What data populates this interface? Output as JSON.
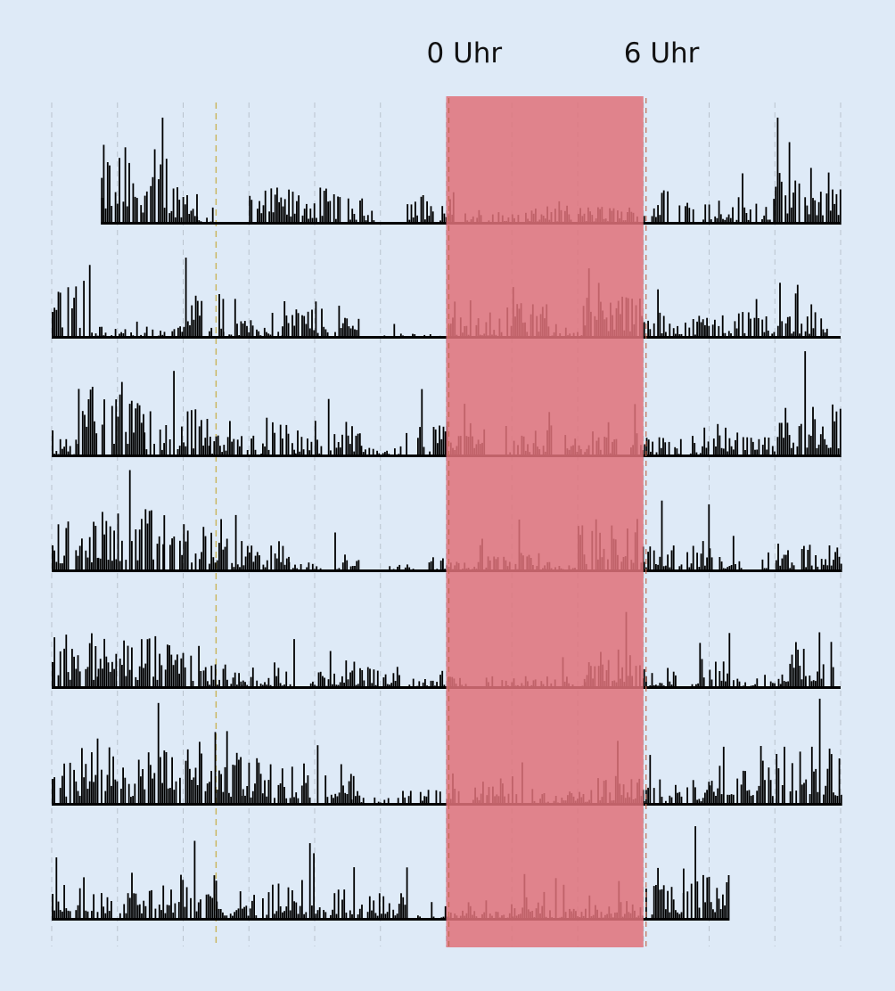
{
  "chart_data": {
    "type": "bar",
    "title": "",
    "xlabel": "",
    "ylabel": "",
    "x_hours": [
      -12,
      12
    ],
    "markers": [
      {
        "label": "0 Uhr",
        "hour": 0
      },
      {
        "label": "6 Uhr",
        "hour": 6
      }
    ],
    "highlight": {
      "from_hour": 0,
      "to_hour": 6,
      "color": "#e0727a"
    },
    "bar_color": "#000000",
    "grid": true,
    "rows": [
      {
        "day": 1,
        "start_hour": -10.5,
        "end_hour": 12,
        "segments": [
          [
            -10.5,
            -8.5,
            0.75
          ],
          [
            -8.5,
            -7.6,
            0.45
          ],
          [
            -7.6,
            -7.0,
            0.1
          ],
          [
            -6.0,
            -3.2,
            0.35
          ],
          [
            -3.0,
            -2.0,
            0.25
          ],
          [
            -1.2,
            -0.4,
            0.3
          ],
          [
            -0.2,
            0.2,
            0.25
          ],
          [
            0.2,
            2.2,
            0.12
          ],
          [
            2.4,
            3.8,
            0.15
          ],
          [
            4.0,
            5.8,
            0.18
          ],
          [
            6.0,
            7.6,
            0.35
          ],
          [
            7.8,
            10.0,
            0.28
          ],
          [
            10.0,
            12.0,
            0.55
          ]
        ]
      },
      {
        "day": 2,
        "start_hour": -12,
        "end_hour": 12,
        "segments": [
          [
            -12,
            -10.8,
            0.6
          ],
          [
            -10.8,
            -8.0,
            0.12
          ],
          [
            -8.0,
            -6.8,
            0.45
          ],
          [
            -6.8,
            -5.0,
            0.18
          ],
          [
            -5.0,
            -3.6,
            0.35
          ],
          [
            -3.4,
            -2.6,
            0.25
          ],
          [
            -2.2,
            -1.6,
            0.04
          ],
          [
            -1.4,
            0.0,
            0.05
          ],
          [
            0.0,
            1.6,
            0.2
          ],
          [
            1.6,
            3.2,
            0.35
          ],
          [
            3.2,
            4.2,
            0.12
          ],
          [
            4.2,
            6.0,
            0.45
          ],
          [
            6.0,
            8.4,
            0.25
          ],
          [
            8.4,
            11.6,
            0.3
          ]
        ]
      },
      {
        "day": 3,
        "start_hour": -12,
        "end_hour": 12,
        "segments": [
          [
            -12,
            -11.2,
            0.18
          ],
          [
            -11.2,
            -9.2,
            0.75
          ],
          [
            -9.2,
            -7.2,
            0.45
          ],
          [
            -7.2,
            -5.6,
            0.2
          ],
          [
            -5.6,
            -4.6,
            0.4
          ],
          [
            -4.6,
            -3.8,
            0.2
          ],
          [
            -3.6,
            -2.6,
            0.35
          ],
          [
            -2.6,
            -1.2,
            0.12
          ],
          [
            -1.0,
            0.0,
            0.3
          ],
          [
            0.0,
            1.2,
            0.35
          ],
          [
            1.8,
            3.2,
            0.3
          ],
          [
            3.6,
            5.2,
            0.25
          ],
          [
            5.6,
            6.4,
            0.3
          ],
          [
            6.4,
            8.0,
            0.2
          ],
          [
            8.0,
            10.0,
            0.35
          ],
          [
            10.0,
            12.0,
            0.55
          ]
        ]
      },
      {
        "day": 4,
        "start_hour": -12,
        "end_hour": 12,
        "segments": [
          [
            -12,
            -10.6,
            0.5
          ],
          [
            -10.6,
            -8.6,
            0.6
          ],
          [
            -8.6,
            -6.6,
            0.5
          ],
          [
            -6.6,
            -4.8,
            0.3
          ],
          [
            -4.8,
            -3.8,
            0.1
          ],
          [
            -3.4,
            -2.6,
            0.18
          ],
          [
            -1.8,
            -1.0,
            0.1
          ],
          [
            -0.6,
            0.0,
            0.15
          ],
          [
            0.0,
            2.2,
            0.15
          ],
          [
            2.2,
            3.0,
            0.25
          ],
          [
            3.0,
            4.0,
            0.1
          ],
          [
            4.0,
            6.0,
            0.5
          ],
          [
            6.0,
            8.0,
            0.3
          ],
          [
            8.0,
            9.0,
            0.22
          ],
          [
            9.6,
            10.6,
            0.25
          ],
          [
            10.8,
            12.0,
            0.3
          ]
        ]
      },
      {
        "day": 5,
        "start_hour": -12,
        "end_hour": 12,
        "segments": [
          [
            -12,
            -10.6,
            0.55
          ],
          [
            -10.6,
            -8.8,
            0.5
          ],
          [
            -8.8,
            -7.4,
            0.45
          ],
          [
            -7.4,
            -6.2,
            0.25
          ],
          [
            -6.2,
            -4.6,
            0.2
          ],
          [
            -4.2,
            -3.0,
            0.18
          ],
          [
            -3.0,
            -1.4,
            0.22
          ],
          [
            -1.2,
            -0.2,
            0.12
          ],
          [
            -0.2,
            0.6,
            0.25
          ],
          [
            1.2,
            4.2,
            0.12
          ],
          [
            4.2,
            6.0,
            0.4
          ],
          [
            6.0,
            7.0,
            0.2
          ],
          [
            7.4,
            8.6,
            0.28
          ],
          [
            8.6,
            10.2,
            0.1
          ],
          [
            10.2,
            11.8,
            0.45
          ]
        ]
      },
      {
        "day": 6,
        "start_hour": -12,
        "end_hour": 12,
        "segments": [
          [
            -12,
            -6.2,
            0.55
          ],
          [
            -6.2,
            -2.9,
            0.45
          ],
          [
            -2.9,
            -2.4,
            0.1
          ],
          [
            -2.2,
            -1.4,
            0.08
          ],
          [
            -1.4,
            -0.2,
            0.15
          ],
          [
            0.0,
            0.4,
            0.18
          ],
          [
            0.8,
            2.4,
            0.28
          ],
          [
            2.6,
            4.6,
            0.15
          ],
          [
            4.6,
            6.0,
            0.3
          ],
          [
            6.0,
            8.0,
            0.25
          ],
          [
            8.0,
            12.0,
            0.6
          ]
        ]
      },
      {
        "day": 7,
        "start_hour": -12,
        "end_hour": 8.6,
        "segments": [
          [
            -12,
            -10.2,
            0.42
          ],
          [
            -10.0,
            -7.0,
            0.45
          ],
          [
            -7.0,
            -5.8,
            0.3
          ],
          [
            -5.6,
            -3.6,
            0.35
          ],
          [
            -3.6,
            -1.2,
            0.3
          ],
          [
            -1.0,
            0.0,
            0.05
          ],
          [
            0.0,
            2.0,
            0.12
          ],
          [
            2.0,
            3.8,
            0.18
          ],
          [
            3.8,
            6.0,
            0.18
          ],
          [
            6.0,
            7.2,
            0.35
          ],
          [
            7.2,
            8.6,
            0.5
          ]
        ]
      }
    ]
  }
}
